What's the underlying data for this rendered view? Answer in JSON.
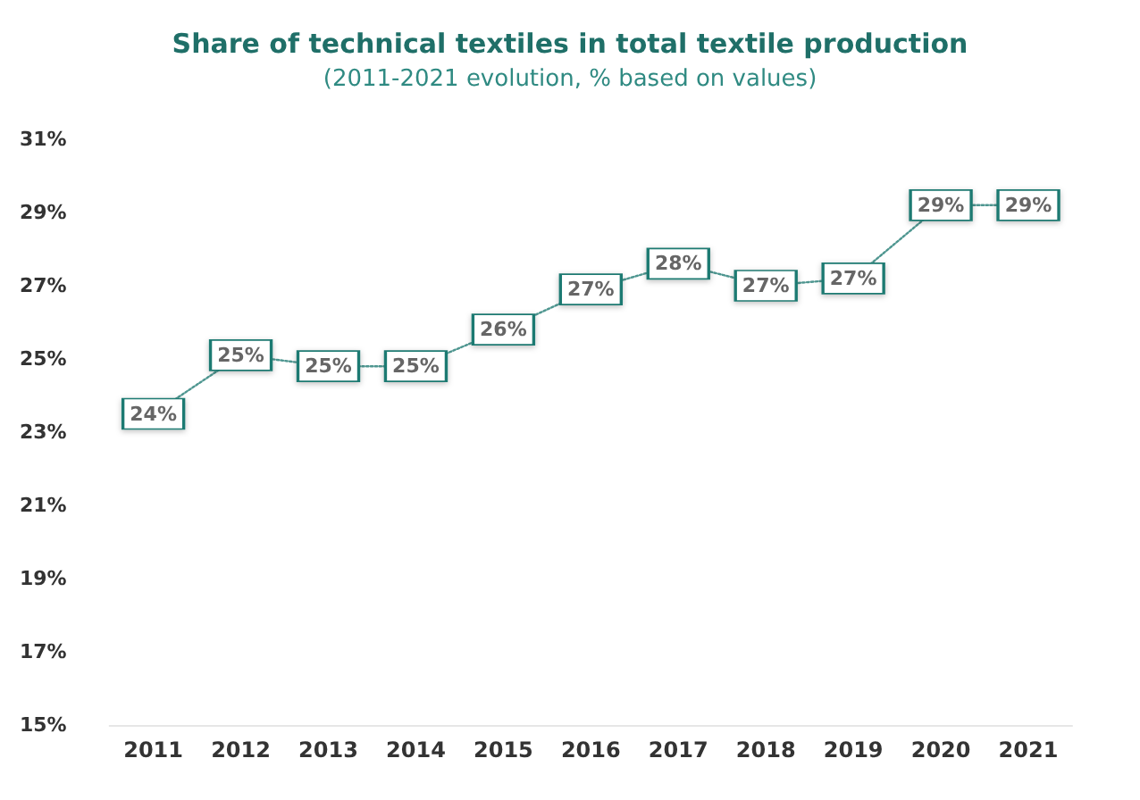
{
  "chart_data": {
    "type": "line",
    "title": "Share of technical textiles in total textile production",
    "subtitle": "(2011-2021 evolution, % based on values)",
    "categories": [
      "2011",
      "2012",
      "2013",
      "2014",
      "2015",
      "2016",
      "2017",
      "2018",
      "2019",
      "2020",
      "2021"
    ],
    "series": [
      {
        "color": "#1f7a72",
        "values": [
          23.5,
          25.1,
          24.8,
          24.8,
          25.8,
          26.9,
          27.6,
          27.0,
          27.2,
          29.2,
          29.2
        ],
        "value_labels": [
          "24%",
          "25%",
          "25%",
          "25%",
          "26%",
          "27%",
          "28%",
          "27%",
          "27%",
          "29%",
          "29%"
        ]
      }
    ],
    "ylim": [
      15,
      31
    ],
    "yticks": [
      {
        "value": 15,
        "label": "15%"
      },
      {
        "value": 17,
        "label": "17%"
      },
      {
        "value": 19,
        "label": "19%"
      },
      {
        "value": 21,
        "label": "21%"
      },
      {
        "value": 23,
        "label": "23%"
      },
      {
        "value": 25,
        "label": "25%"
      },
      {
        "value": 27,
        "label": "27%"
      },
      {
        "value": 29,
        "label": "29%"
      },
      {
        "value": 31,
        "label": "31%"
      }
    ],
    "grid": false,
    "marker": "square",
    "line_style": "dotted"
  }
}
